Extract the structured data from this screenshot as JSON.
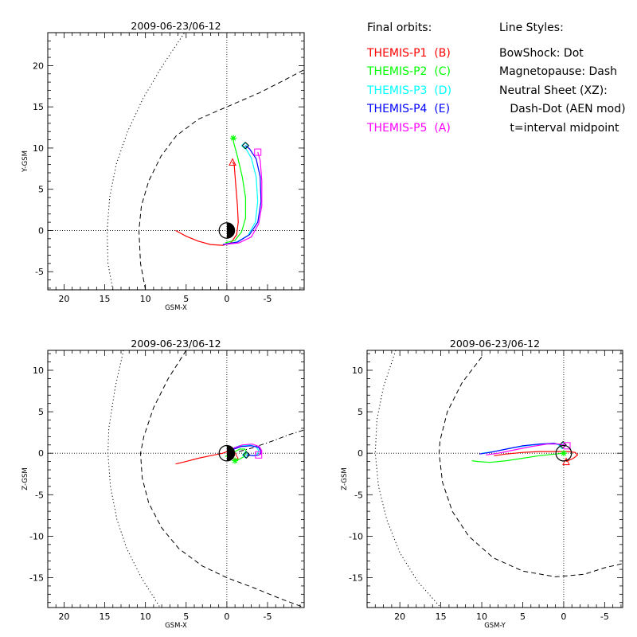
{
  "chart_data": [
    {
      "type": "line",
      "title": "2009-06-23/06-12",
      "xlabel": "GSM-X",
      "ylabel": "Y-GSM",
      "xlim": [
        22,
        -9.5
      ],
      "ylim": [
        -7.2,
        24
      ],
      "x_ticks": [
        20,
        15,
        10,
        5,
        0,
        -5
      ],
      "x_tick_labels": [
        "20",
        "15",
        "10",
        "5",
        "0",
        "-5"
      ],
      "y_ticks": [
        -5,
        0,
        5,
        10,
        15,
        20
      ],
      "y_tick_labels": [
        "-5",
        "0",
        "5",
        "10",
        "15",
        "20"
      ],
      "earth": {
        "x": 0,
        "y": 0,
        "radius": 0.95,
        "night": "right"
      },
      "reference_lines": [
        {
          "name": "bow-shock",
          "style": "dot",
          "points": [
            [
              14,
              -7.2
            ],
            [
              14.6,
              -4
            ],
            [
              14.7,
              0
            ],
            [
              14.4,
              4
            ],
            [
              13.6,
              8
            ],
            [
              12.2,
              12
            ],
            [
              10.3,
              16
            ],
            [
              7.9,
              20
            ],
            [
              5.2,
              24
            ]
          ]
        },
        {
          "name": "magnetopause",
          "style": "dash",
          "points": [
            [
              10,
              -7.2
            ],
            [
              10.6,
              -4
            ],
            [
              10.8,
              0
            ],
            [
              10.5,
              3
            ],
            [
              9.6,
              6
            ],
            [
              8.1,
              9
            ],
            [
              6.2,
              11.5
            ],
            [
              3.5,
              13.5
            ],
            [
              0,
              15
            ],
            [
              -4,
              16.7
            ],
            [
              -7,
              18.2
            ],
            [
              -9.5,
              19.5
            ]
          ]
        }
      ],
      "series": [
        {
          "name": "THEMIS-P1",
          "color": "#ff0000",
          "marker": "triangle",
          "points": [
            [
              6.3,
              0
            ],
            [
              5,
              -0.7
            ],
            [
              3.5,
              -1.3
            ],
            [
              2,
              -1.7
            ],
            [
              0.5,
              -1.8
            ],
            [
              -0.5,
              -1.5
            ],
            [
              -1.2,
              -0.5
            ],
            [
              -1.4,
              1
            ],
            [
              -1.3,
              3
            ],
            [
              -1.1,
              5.5
            ],
            [
              -0.9,
              8
            ],
            [
              -0.7,
              8.3
            ]
          ]
        },
        {
          "name": "THEMIS-P2",
          "color": "#00ff00",
          "marker": "asterisk",
          "points": [
            [
              0.2,
              -1.5
            ],
            [
              -1,
              -1.2
            ],
            [
              -1.8,
              -0.2
            ],
            [
              -2.3,
              1.5
            ],
            [
              -2.3,
              4
            ],
            [
              -1.9,
              6.5
            ],
            [
              -1.3,
              9
            ],
            [
              -0.8,
              10.8
            ],
            [
              -0.8,
              11.2
            ]
          ]
        },
        {
          "name": "THEMIS-P3",
          "color": "#00ffff",
          "marker": "diamond",
          "points": [
            [
              0.4,
              -1.7
            ],
            [
              -1.2,
              -1.4
            ],
            [
              -2.6,
              -0.6
            ],
            [
              -3.5,
              1
            ],
            [
              -3.8,
              3.5
            ],
            [
              -3.6,
              6.5
            ],
            [
              -3,
              8.8
            ],
            [
              -2.3,
              10
            ],
            [
              -2.2,
              10.3
            ]
          ]
        },
        {
          "name": "THEMIS-P4",
          "color": "#0000ff",
          "marker": "diamond",
          "points": [
            [
              0.5,
              -1.7
            ],
            [
              -1.3,
              -1.4
            ],
            [
              -2.8,
              -0.5
            ],
            [
              -3.8,
              1
            ],
            [
              -4.2,
              3.5
            ],
            [
              -4.1,
              6.5
            ],
            [
              -3.6,
              8.7
            ],
            [
              -2.8,
              9.9
            ],
            [
              -2.3,
              10.3
            ]
          ]
        },
        {
          "name": "THEMIS-P5",
          "color": "#ff00ff",
          "marker": "square",
          "points": [
            [
              0.3,
              -1.7
            ],
            [
              -1.5,
              -1.5
            ],
            [
              -3,
              -0.8
            ],
            [
              -3.9,
              0.8
            ],
            [
              -4.3,
              3
            ],
            [
              -4.3,
              6
            ],
            [
              -4.1,
              8.5
            ],
            [
              -3.8,
              9.5
            ]
          ]
        }
      ]
    },
    {
      "type": "line",
      "title": "2009-06-23/06-12",
      "xlabel": "GSM-X",
      "ylabel": "Z-GSM",
      "xlim": [
        22,
        -9.5
      ],
      "ylim": [
        -18.6,
        12.4
      ],
      "x_ticks": [
        20,
        15,
        10,
        5,
        0,
        -5
      ],
      "x_tick_labels": [
        "20",
        "15",
        "10",
        "5",
        "0",
        "-5"
      ],
      "y_ticks": [
        10,
        5,
        0,
        -5,
        -10,
        -15
      ],
      "y_tick_labels": [
        "10",
        "5",
        "0",
        "-5",
        "-10",
        "-15"
      ],
      "earth": {
        "x": 0,
        "y": 0,
        "radius": 0.95,
        "night": "right"
      },
      "reference_lines": [
        {
          "name": "bow-shock",
          "style": "dot",
          "points": [
            [
              12.7,
              12.4
            ],
            [
              13.7,
              8
            ],
            [
              14.5,
              3
            ],
            [
              14.6,
              0
            ],
            [
              14.3,
              -4
            ],
            [
              13.5,
              -8
            ],
            [
              12.3,
              -11.5
            ],
            [
              10.5,
              -15
            ],
            [
              8.2,
              -18.6
            ]
          ]
        },
        {
          "name": "magnetopause",
          "style": "dash",
          "points": [
            [
              5,
              12.4
            ],
            [
              7.2,
              9
            ],
            [
              9,
              5.5
            ],
            [
              10.2,
              2
            ],
            [
              10.6,
              0
            ],
            [
              10.4,
              -3
            ],
            [
              9.6,
              -6
            ],
            [
              8,
              -9
            ],
            [
              5.9,
              -11.5
            ],
            [
              3,
              -13.6
            ],
            [
              0,
              -15
            ],
            [
              -3.5,
              -16.3
            ],
            [
              -6.5,
              -17.5
            ],
            [
              -9.5,
              -18.6
            ]
          ]
        },
        {
          "name": "neutral-sheet",
          "style": "dash-dot",
          "points": [
            [
              -1.5,
              0.2
            ],
            [
              -3,
              0.6
            ],
            [
              -4.5,
              1.1
            ],
            [
              -6,
              1.6
            ],
            [
              -7.5,
              2.2
            ],
            [
              -9.5,
              2.8
            ]
          ]
        }
      ],
      "series": [
        {
          "name": "THEMIS-P1",
          "color": "#ff0000",
          "marker": "triangle",
          "points": [
            [
              6.3,
              -1.3
            ],
            [
              5,
              -1
            ],
            [
              3.5,
              -0.6
            ],
            [
              2,
              -0.3
            ],
            [
              0.5,
              0
            ],
            [
              -0.3,
              0.3
            ],
            [
              -0.6,
              0.3
            ],
            [
              -0.8,
              -0.1
            ],
            [
              -1,
              -0.3
            ]
          ]
        },
        {
          "name": "THEMIS-P2",
          "color": "#00ff00",
          "marker": "asterisk",
          "points": [
            [
              0.2,
              -0.4
            ],
            [
              -0.8,
              0.1
            ],
            [
              -1.6,
              0.5
            ],
            [
              -2.2,
              0.5
            ],
            [
              -2.4,
              0.1
            ],
            [
              -2.1,
              -0.4
            ],
            [
              -1.6,
              -0.7
            ],
            [
              -1,
              -0.9
            ]
          ]
        },
        {
          "name": "THEMIS-P3",
          "color": "#00ffff",
          "marker": "diamond",
          "points": [
            [
              -0.5,
              0.5
            ],
            [
              -1.5,
              0.9
            ],
            [
              -2.8,
              1
            ],
            [
              -3.6,
              0.8
            ],
            [
              -3.9,
              0.3
            ],
            [
              -3.7,
              -0.2
            ],
            [
              -3.2,
              -0.3
            ],
            [
              -2.3,
              -0.2
            ]
          ]
        },
        {
          "name": "THEMIS-P4",
          "color": "#0000ff",
          "marker": "diamond",
          "points": [
            [
              -0.6,
              0.4
            ],
            [
              -1.7,
              0.8
            ],
            [
              -3,
              0.9
            ],
            [
              -3.9,
              0.7
            ],
            [
              -4.2,
              0.2
            ],
            [
              -4,
              -0.2
            ],
            [
              -3.3,
              -0.3
            ],
            [
              -2.4,
              -0.2
            ]
          ]
        },
        {
          "name": "THEMIS-P5",
          "color": "#ff00ff",
          "marker": "square",
          "points": [
            [
              -0.8,
              0.6
            ],
            [
              -1.9,
              1
            ],
            [
              -3.1,
              1.1
            ],
            [
              -4,
              0.8
            ],
            [
              -4.3,
              0.3
            ],
            [
              -4.2,
              -0.1
            ],
            [
              -3.9,
              -0.2
            ]
          ]
        }
      ]
    },
    {
      "type": "line",
      "title": "2009-06-23/06-12",
      "xlabel": "GSM-Y",
      "ylabel": "Z-GSM",
      "xlim": [
        24,
        -7.2
      ],
      "ylim": [
        -18.6,
        12.4
      ],
      "x_ticks": [
        20,
        15,
        10,
        5,
        0,
        -5
      ],
      "x_tick_labels": [
        "20",
        "15",
        "10",
        "5",
        "0",
        "-5"
      ],
      "y_ticks": [
        10,
        5,
        0,
        -5,
        -10,
        -15
      ],
      "y_tick_labels": [
        "10",
        "5",
        "0",
        "-5",
        "-10",
        "-15"
      ],
      "earth": {
        "x": 0,
        "y": 0,
        "radius": 0.95,
        "night": "none"
      },
      "reference_lines": [
        {
          "name": "bow-shock",
          "style": "dot",
          "points": [
            [
              20.5,
              12.4
            ],
            [
              22,
              8
            ],
            [
              22.8,
              4
            ],
            [
              23,
              0
            ],
            [
              22.6,
              -4
            ],
            [
              21.6,
              -8
            ],
            [
              20,
              -12
            ],
            [
              17.8,
              -15.5
            ],
            [
              15,
              -18.6
            ]
          ]
        },
        {
          "name": "magnetopause",
          "style": "dash",
          "points": [
            [
              10,
              11.6
            ],
            [
              12.4,
              8.5
            ],
            [
              14.2,
              5
            ],
            [
              15.1,
              1.5
            ],
            [
              15.2,
              0
            ],
            [
              14.8,
              -3.5
            ],
            [
              13.6,
              -7
            ],
            [
              11.6,
              -10
            ],
            [
              8.6,
              -12.6
            ],
            [
              5,
              -14.2
            ],
            [
              1,
              -14.9
            ],
            [
              -2.5,
              -14.6
            ],
            [
              -5,
              -13.8
            ],
            [
              -7.2,
              -13.3
            ]
          ]
        }
      ],
      "series": [
        {
          "name": "THEMIS-P1",
          "color": "#ff0000",
          "marker": "triangle",
          "points": [
            [
              8.5,
              -0.3
            ],
            [
              7,
              -0.1
            ],
            [
              5,
              0.1
            ],
            [
              3,
              0.2
            ],
            [
              1,
              0.2
            ],
            [
              -0.5,
              0.2
            ],
            [
              -1.4,
              0.1
            ],
            [
              -1.7,
              -0.2
            ],
            [
              -1.2,
              -0.6
            ],
            [
              -0.3,
              -1
            ]
          ]
        },
        {
          "name": "THEMIS-P2",
          "color": "#00ff00",
          "marker": "asterisk",
          "points": [
            [
              11.2,
              -0.9
            ],
            [
              10.5,
              -1
            ],
            [
              9,
              -1.1
            ],
            [
              7,
              -0.9
            ],
            [
              5,
              -0.6
            ],
            [
              3,
              -0.3
            ],
            [
              1,
              -0.1
            ],
            [
              0,
              0
            ]
          ]
        },
        {
          "name": "THEMIS-P3",
          "color": "#00ffff",
          "marker": "diamond",
          "points": [
            [
              10,
              0
            ],
            [
              8.5,
              0.2
            ],
            [
              6.5,
              0.6
            ],
            [
              4.5,
              0.9
            ],
            [
              2.5,
              1.1
            ],
            [
              1,
              1.1
            ],
            [
              0.2,
              0.9
            ]
          ]
        },
        {
          "name": "THEMIS-P4",
          "color": "#0000ff",
          "marker": "diamond",
          "points": [
            [
              10.3,
              -0.1
            ],
            [
              9,
              0.1
            ],
            [
              7,
              0.5
            ],
            [
              5,
              0.9
            ],
            [
              3,
              1.1
            ],
            [
              1.2,
              1.2
            ],
            [
              0.1,
              1
            ]
          ]
        },
        {
          "name": "THEMIS-P5",
          "color": "#ff00ff",
          "marker": "square",
          "points": [
            [
              9.5,
              -0.2
            ],
            [
              8,
              0
            ],
            [
              6,
              0.4
            ],
            [
              4,
              0.8
            ],
            [
              2,
              1.1
            ],
            [
              0.5,
              1.1
            ],
            [
              -0.4,
              0.9
            ]
          ]
        }
      ]
    }
  ],
  "legend": {
    "orbits_title": "Final orbits:",
    "orbits": [
      {
        "label": "THEMIS-P1  (B)",
        "color": "#ff0000"
      },
      {
        "label": "THEMIS-P2  (C)",
        "color": "#00ff00"
      },
      {
        "label": "THEMIS-P3  (D)",
        "color": "#00ffff"
      },
      {
        "label": "THEMIS-P4  (E)",
        "color": "#0000ff"
      },
      {
        "label": "THEMIS-P5  (A)",
        "color": "#ff00ff"
      }
    ],
    "styles_title": "Line Styles:",
    "styles": [
      "BowShock: Dot",
      "Magnetopause: Dash",
      "Neutral Sheet (XZ):",
      "   Dash-Dot (AEN mod)",
      "   t=interval midpoint"
    ]
  }
}
